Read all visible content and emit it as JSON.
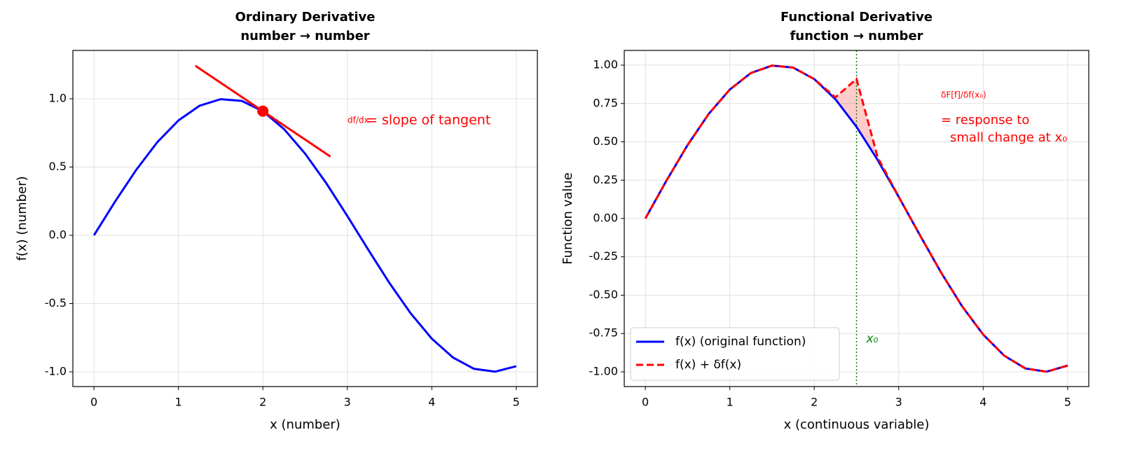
{
  "chart_data": [
    {
      "type": "line",
      "title": "Ordinary Derivative",
      "subtitle": "number → number",
      "xlabel": "x (number)",
      "ylabel": "f(x) (number)",
      "xlim": [
        -0.25,
        5.25
      ],
      "ylim": [
        -1.108,
        1.354
      ],
      "xticks": [
        0,
        1,
        2,
        3,
        4,
        5
      ],
      "yticks": [
        {
          "value": -1,
          "label": "-1.0"
        },
        {
          "value": -0.5,
          "label": "-0.5"
        },
        {
          "value": 0,
          "label": "0.0"
        },
        {
          "value": 0.5,
          "label": "0.5"
        },
        {
          "value": 1,
          "label": "1.0"
        }
      ],
      "grid": true,
      "series": [
        {
          "color": "#0000ff",
          "style": "solid",
          "x": [
            0,
            0.25,
            0.5,
            0.75,
            1,
            1.25,
            1.5,
            1.75,
            2,
            2.25,
            2.5,
            2.75,
            3,
            3.25,
            3.5,
            3.75,
            4,
            4.25,
            4.5,
            4.75,
            5
          ],
          "values": [
            0,
            0.247,
            0.479,
            0.682,
            0.841,
            0.949,
            0.997,
            0.984,
            0.909,
            0.778,
            0.598,
            0.382,
            0.141,
            -0.108,
            -0.351,
            -0.572,
            -0.757,
            -0.895,
            -0.978,
            -0.999,
            -0.959
          ]
        },
        {
          "color": "#ff0000",
          "style": "solid",
          "x": [
            1.2,
            2.8
          ],
          "values": [
            1.242,
            0.576
          ]
        }
      ],
      "point": {
        "x": 2,
        "y": 0.909,
        "color": "#ff0000"
      },
      "annotations": [
        {
          "text": "df/dx",
          "color": "#ff0000"
        },
        {
          "text": "= slope of tangent",
          "color": "#ff0000"
        }
      ]
    },
    {
      "type": "line",
      "title": "Functional Derivative",
      "subtitle": "function → number",
      "xlabel": "x (continuous variable)",
      "ylabel": "Function value",
      "xlim": [
        -0.25,
        5.25
      ],
      "ylim": [
        -1.096,
        1.096
      ],
      "xticks": [
        0,
        1,
        2,
        3,
        4,
        5
      ],
      "yticks": [
        {
          "value": -1,
          "label": "-1.00"
        },
        {
          "value": -0.75,
          "label": "-0.75"
        },
        {
          "value": -0.5,
          "label": "-0.50"
        },
        {
          "value": -0.25,
          "label": "-0.25"
        },
        {
          "value": 0,
          "label": "0.00"
        },
        {
          "value": 0.25,
          "label": "0.25"
        },
        {
          "value": 0.5,
          "label": "0.50"
        },
        {
          "value": 0.75,
          "label": "0.75"
        },
        {
          "value": 1,
          "label": "1.00"
        }
      ],
      "grid": true,
      "legend": "lower left",
      "series": [
        {
          "name": "f(x) (original function)",
          "color": "#0000ff",
          "style": "solid",
          "x": [
            0,
            0.25,
            0.5,
            0.75,
            1,
            1.25,
            1.5,
            1.75,
            2,
            2.25,
            2.5,
            2.75,
            3,
            3.25,
            3.5,
            3.75,
            4,
            4.25,
            4.5,
            4.75,
            5
          ],
          "values": [
            0,
            0.247,
            0.479,
            0.682,
            0.841,
            0.949,
            0.997,
            0.984,
            0.909,
            0.778,
            0.598,
            0.382,
            0.141,
            -0.108,
            -0.351,
            -0.572,
            -0.757,
            -0.895,
            -0.978,
            -0.999,
            -0.959
          ]
        },
        {
          "name": "f(x) + δf(x)",
          "color": "#ff0000",
          "style": "dashed",
          "x": [
            0,
            0.25,
            0.5,
            0.75,
            1,
            1.25,
            1.5,
            1.75,
            2,
            2.25,
            2.5,
            2.75,
            3,
            3.25,
            3.5,
            3.75,
            4,
            4.25,
            4.5,
            4.75,
            5
          ],
          "values": [
            0,
            0.247,
            0.479,
            0.682,
            0.841,
            0.949,
            0.997,
            0.984,
            0.909,
            0.79,
            0.91,
            0.4,
            0.141,
            -0.108,
            -0.351,
            -0.572,
            -0.757,
            -0.895,
            -0.978,
            -0.999,
            -0.959
          ]
        }
      ],
      "fill_color": "#ff0000",
      "vline": {
        "x": 2.5,
        "color": "#008000",
        "label": "x₀"
      },
      "annotations": [
        {
          "text": "δF[f]/δf(x₀)",
          "color": "#ff0000"
        },
        {
          "text": "= response to",
          "color": "#ff0000"
        },
        {
          "text": "small change at x₀",
          "color": "#ff0000"
        }
      ]
    }
  ]
}
